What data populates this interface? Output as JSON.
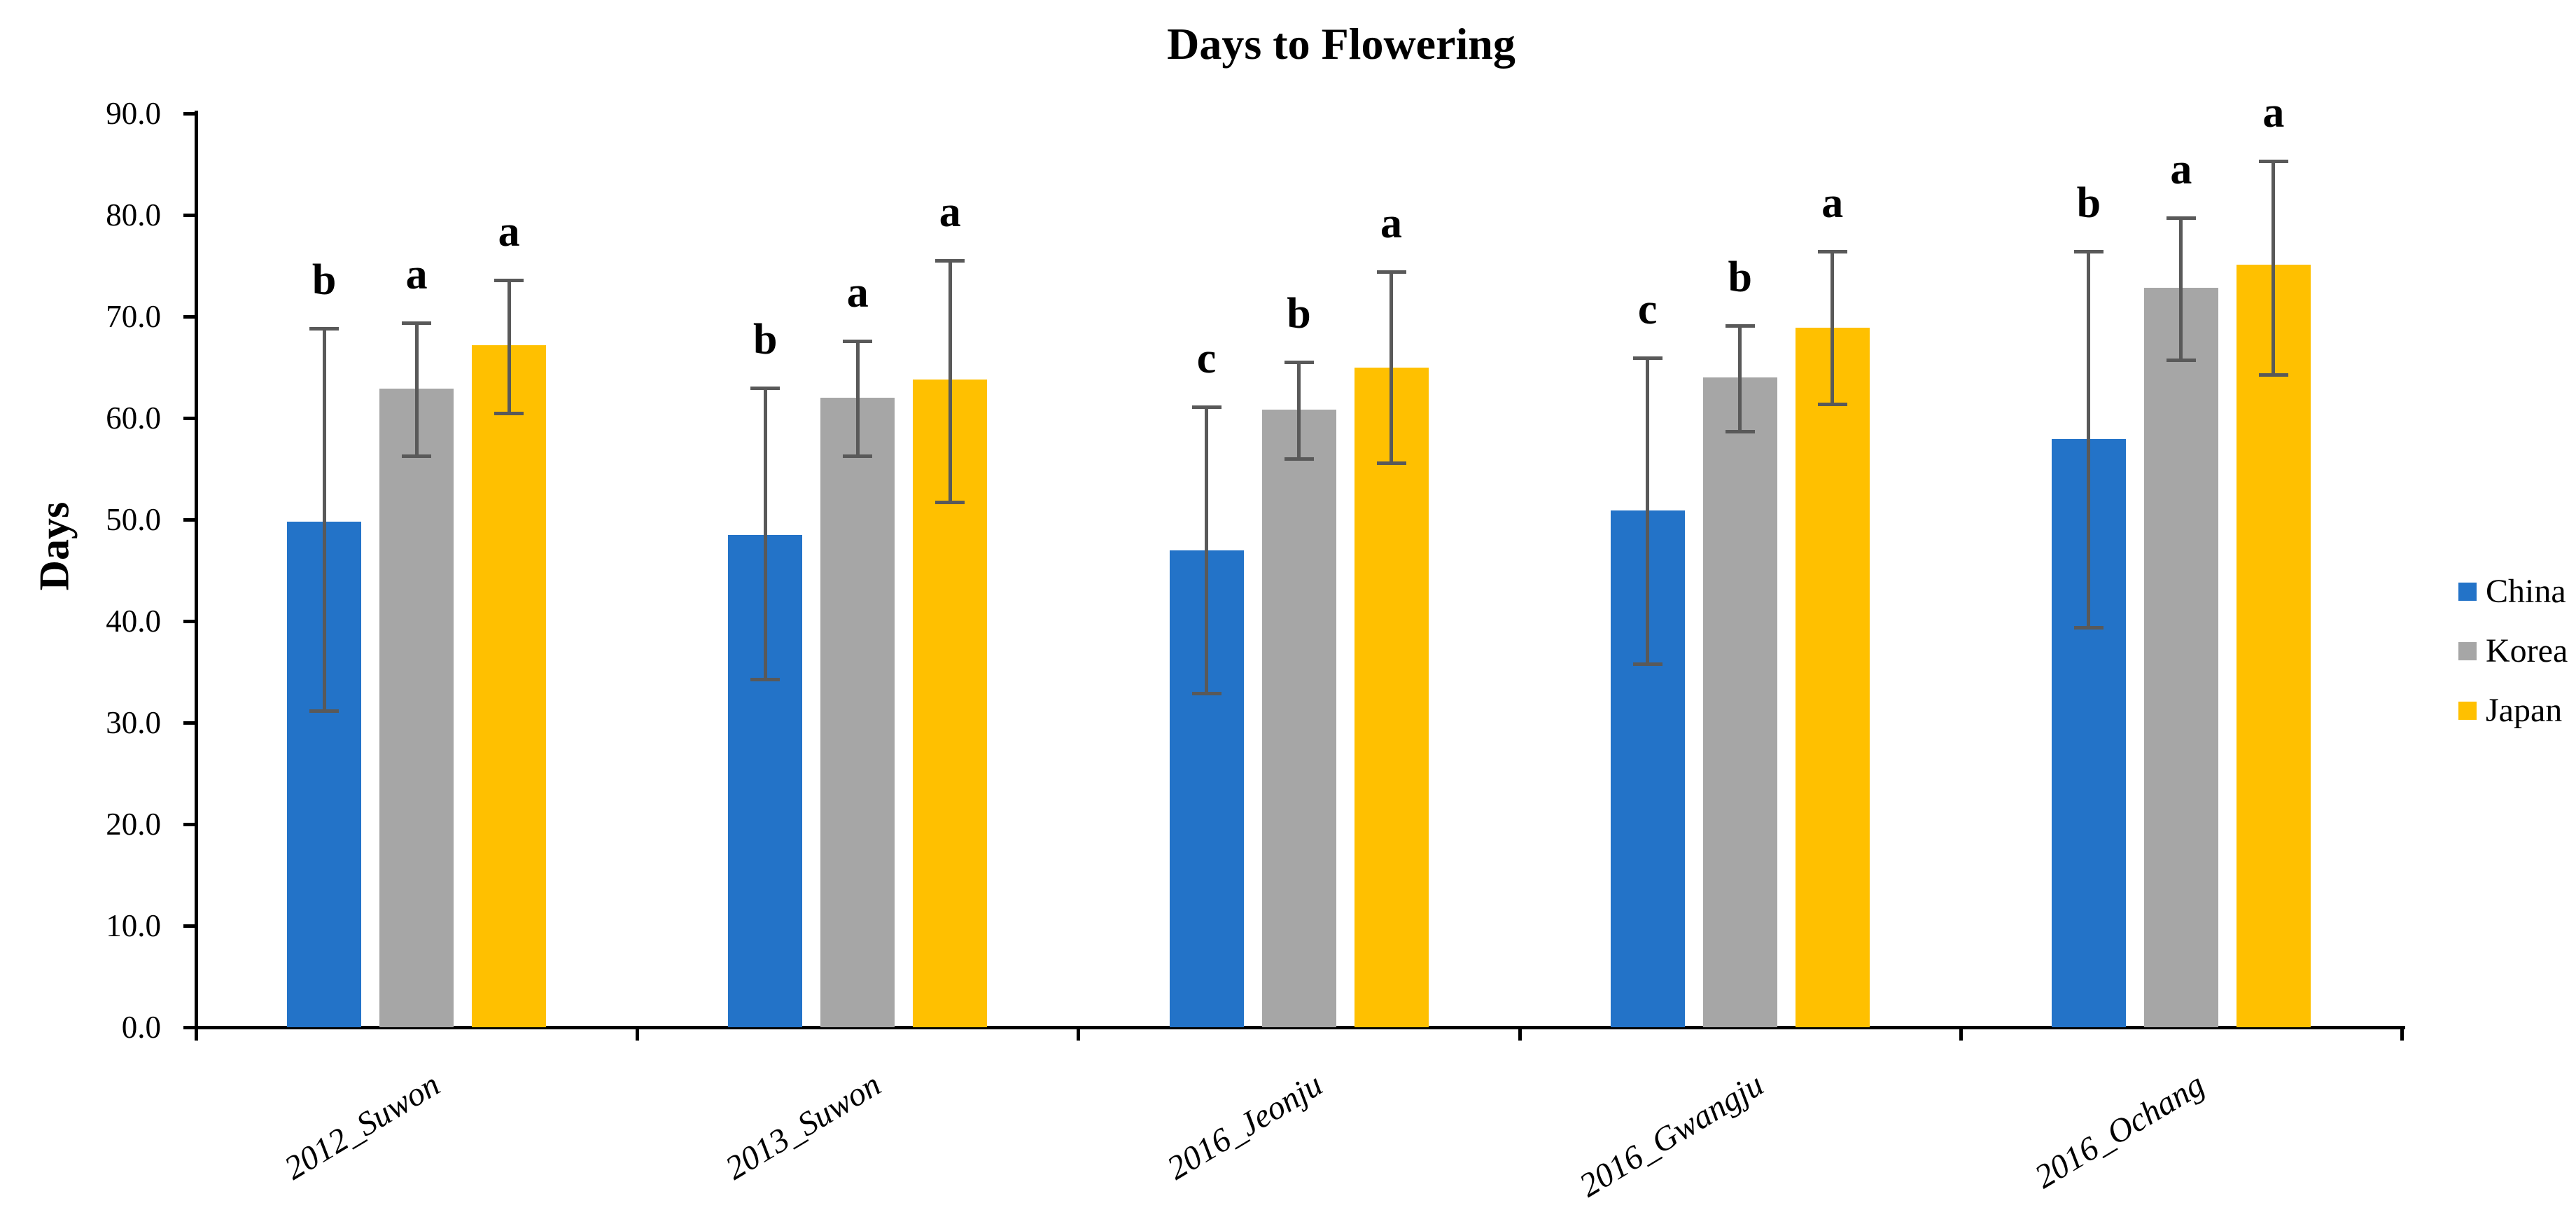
{
  "title": "Days to Flowering",
  "y_axis": {
    "label": "Days",
    "tick_labels": [
      "0.0",
      "10.0",
      "20.0",
      "30.0",
      "40.0",
      "50.0",
      "60.0",
      "70.0",
      "80.0",
      "90.0"
    ],
    "min": 0,
    "max": 90
  },
  "legend": {
    "position": "right",
    "items": [
      "China",
      "Korea",
      "Japan"
    ]
  },
  "chart_data": {
    "type": "bar",
    "title": "Days to Flowering",
    "xlabel": "",
    "ylabel": "Days",
    "ylim": [
      0,
      90
    ],
    "y_tick_step": 10,
    "grid": false,
    "legend_position": "right",
    "error_bar_color": "#595959",
    "categories": [
      "2012_Suwon",
      "2013_Suwon",
      "2016_Jeonju",
      "2016_Gwangju",
      "2016_Ochang"
    ],
    "series": [
      {
        "name": "China",
        "color": "#2373C8",
        "values": [
          49.8,
          48.5,
          47.0,
          50.9,
          57.9
        ],
        "error_low": [
          31.2,
          34.3,
          32.9,
          35.8,
          39.4
        ],
        "error_high": [
          68.8,
          63.0,
          61.1,
          65.9,
          76.4
        ],
        "sig_letters": [
          "b",
          "b",
          "c",
          "c",
          "b"
        ]
      },
      {
        "name": "Korea",
        "color": "#A6A6A6",
        "values": [
          62.9,
          62.0,
          60.8,
          64.0,
          72.8
        ],
        "error_low": [
          56.3,
          56.3,
          56.0,
          58.7,
          65.7
        ],
        "error_high": [
          69.4,
          67.6,
          65.5,
          69.1,
          79.7
        ],
        "sig_letters": [
          "a",
          "a",
          "b",
          "b",
          "a"
        ]
      },
      {
        "name": "Japan",
        "color": "#FFC000",
        "values": [
          67.2,
          63.8,
          65.0,
          68.9,
          75.1
        ],
        "error_low": [
          60.5,
          51.7,
          55.6,
          61.4,
          64.3
        ],
        "error_high": [
          73.6,
          75.5,
          74.4,
          76.4,
          85.3
        ],
        "sig_letters": [
          "a",
          "a",
          "a",
          "a",
          "a"
        ]
      }
    ]
  }
}
